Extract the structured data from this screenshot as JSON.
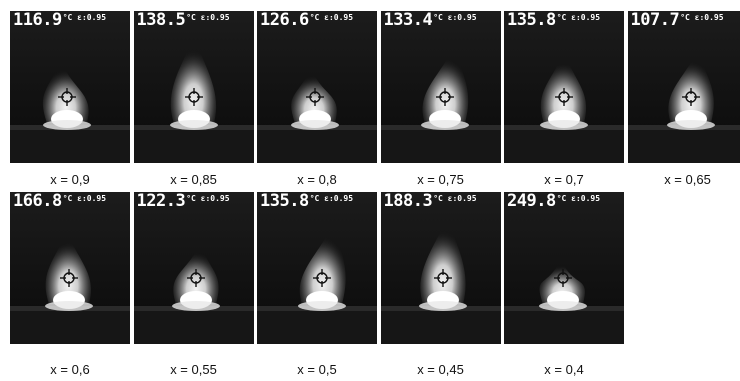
{
  "unit_label": "°C ε:0.95",
  "rows": [
    [
      {
        "temperature": "116.9",
        "caption": "x = 0,9"
      },
      {
        "temperature": "138.5",
        "caption": "x = 0,85"
      },
      {
        "temperature": "126.6",
        "caption": "x = 0,8"
      },
      {
        "temperature": "133.4",
        "caption": "x = 0,75"
      },
      {
        "temperature": "135.8",
        "caption": "x = 0,7"
      },
      {
        "temperature": "107.7",
        "caption": "x = 0,65"
      }
    ],
    [
      {
        "temperature": "166.8",
        "caption": "x = 0,6"
      },
      {
        "temperature": "122.3",
        "caption": "x = 0,55"
      },
      {
        "temperature": "135.8",
        "caption": "x = 0,5"
      },
      {
        "temperature": "188.3",
        "caption": "x = 0,45"
      },
      {
        "temperature": "249.8",
        "caption": "x = 0,4"
      }
    ]
  ]
}
